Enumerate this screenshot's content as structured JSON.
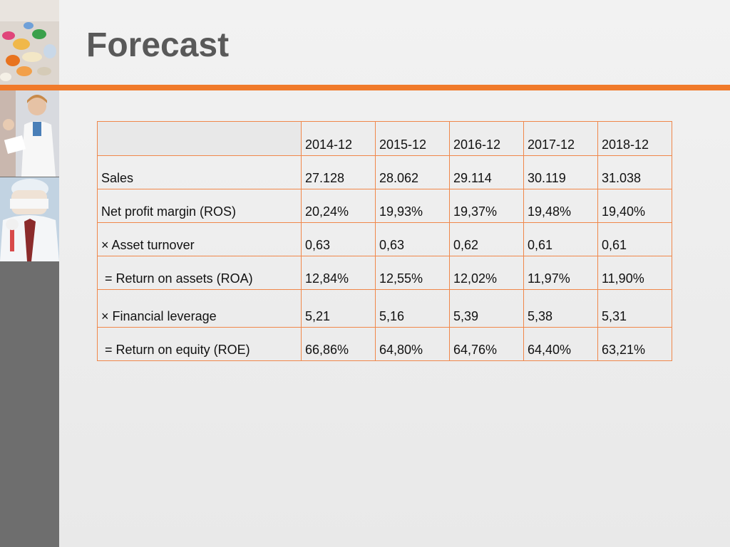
{
  "slide": {
    "title": "Forecast",
    "accent_color": "#f07a2a"
  },
  "table": {
    "columns": [
      "",
      "2014-12",
      "2015-12",
      "2016-12",
      "2017-12",
      "2018-12"
    ],
    "rows": [
      {
        "label": "Sales",
        "values": [
          "27.128",
          "28.062",
          "29.114",
          "30.119",
          "31.038"
        ]
      },
      {
        "label": "Net profit margin (ROS)",
        "values": [
          "20,24%",
          "19,93%",
          "19,37%",
          "19,48%",
          "19,40%"
        ]
      },
      {
        "label": "× Asset turnover",
        "values": [
          "0,63",
          "0,63",
          "0,62",
          "0,61",
          "0,61"
        ]
      },
      {
        "label": " = Return on assets (ROA)",
        "values": [
          "12,84%",
          "12,55%",
          "12,02%",
          "11,97%",
          "11,90%"
        ]
      },
      {
        "label": "× Financial leverage",
        "values": [
          "5,21",
          "5,16",
          "5,39",
          "5,38",
          "5,31"
        ]
      },
      {
        "label": " = Return on equity (ROE)",
        "values": [
          "66,86%",
          "64,80%",
          "64,76%",
          "64,40%",
          "63,21%"
        ]
      }
    ]
  }
}
